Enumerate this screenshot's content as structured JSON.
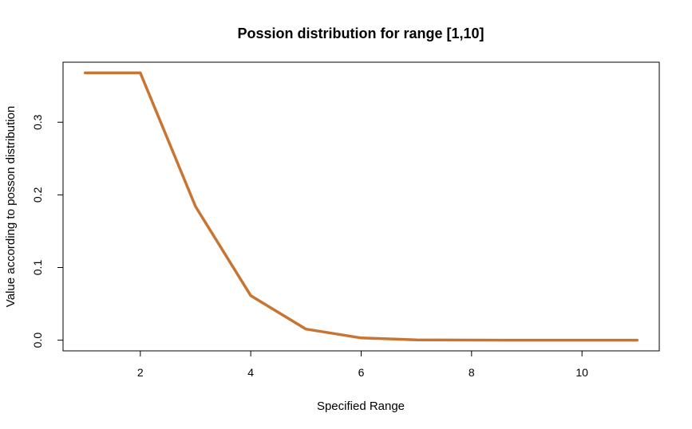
{
  "chart_data": {
    "type": "line",
    "title": "Possion distribution for range [1,10]",
    "xlabel": "Specified Range",
    "ylabel": "Value according to posson distribution",
    "x": [
      1,
      2,
      3,
      4,
      5,
      6,
      7,
      8,
      9,
      10,
      11
    ],
    "series": [
      {
        "color": "#c87533",
        "values": [
          0.3679,
          0.3679,
          0.1839,
          0.0613,
          0.0153,
          0.0031,
          0.0005,
          0.0001,
          0.0,
          0.0,
          0.0
        ]
      }
    ],
    "xticks": [
      2,
      4,
      6,
      8,
      10
    ],
    "yticks": [
      0.0,
      0.1,
      0.2,
      0.3
    ],
    "ytick_labels": [
      "0.0",
      "0.1",
      "0.2",
      "0.3"
    ],
    "xlim": [
      0.6,
      11.4
    ],
    "ylim": [
      -0.0147,
      0.3826
    ],
    "grid": false,
    "legend": "none"
  }
}
